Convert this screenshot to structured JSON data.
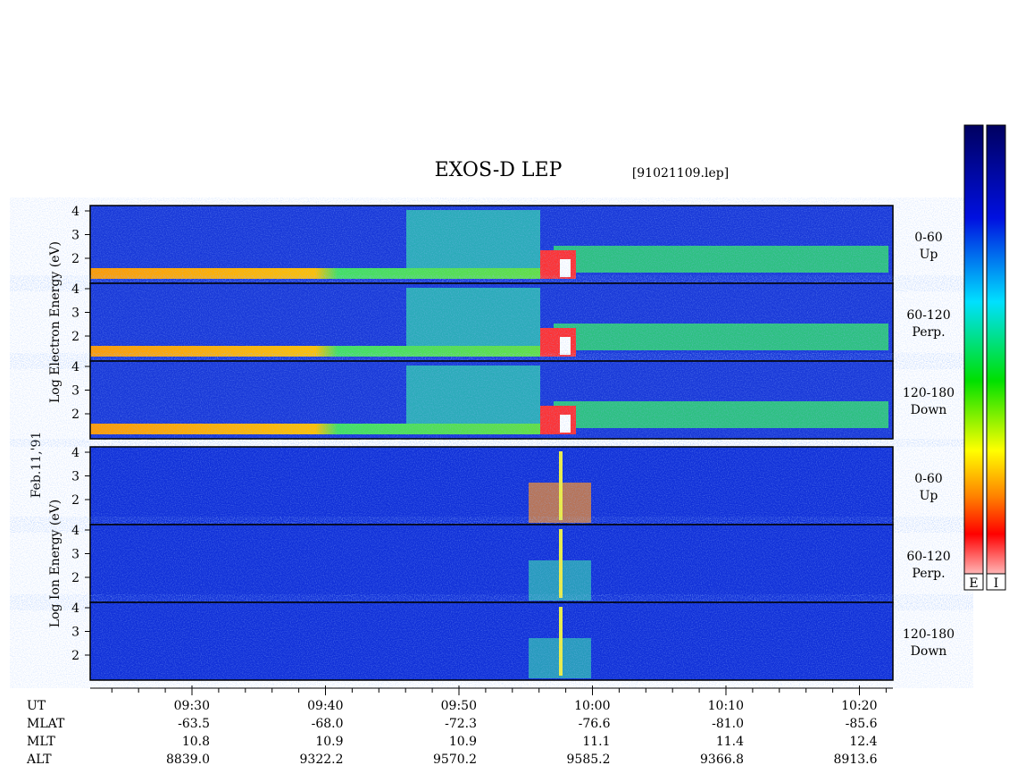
{
  "title": "EXOS-D LEP",
  "file": "[91021109.lep]",
  "date": "Feb.11,'91",
  "groups": [
    {
      "label": "Log  Electron  Energy (eV)",
      "panels": [
        {
          "angle": "0-60",
          "dir": "Up"
        },
        {
          "angle": "60-120",
          "dir": "Perp."
        },
        {
          "angle": "120-180",
          "dir": "Down"
        }
      ]
    },
    {
      "label": "Log  Ion  Energy (eV)",
      "panels": [
        {
          "angle": "0-60",
          "dir": "Up"
        },
        {
          "angle": "60-120",
          "dir": "Perp."
        },
        {
          "angle": "120-180",
          "dir": "Down"
        }
      ]
    }
  ],
  "yticks": [
    2,
    3,
    4
  ],
  "ephemeris": [
    {
      "name": "UT",
      "values": [
        "09:30",
        "09:40",
        "09:50",
        "10:00",
        "10:10",
        "10:20"
      ]
    },
    {
      "name": "MLAT",
      "values": [
        "-63.5",
        "-68.0",
        "-72.3",
        "-76.6",
        "-81.0",
        "-85.6"
      ]
    },
    {
      "name": "MLT",
      "values": [
        "10.8",
        "10.9",
        "10.9",
        "11.1",
        "11.4",
        "12.4"
      ]
    },
    {
      "name": "ALT",
      "values": [
        "8839.0",
        "9322.2",
        "9570.2",
        "9585.2",
        "9366.8",
        "8913.6"
      ]
    }
  ],
  "colorbars": [
    "E",
    "I"
  ]
}
